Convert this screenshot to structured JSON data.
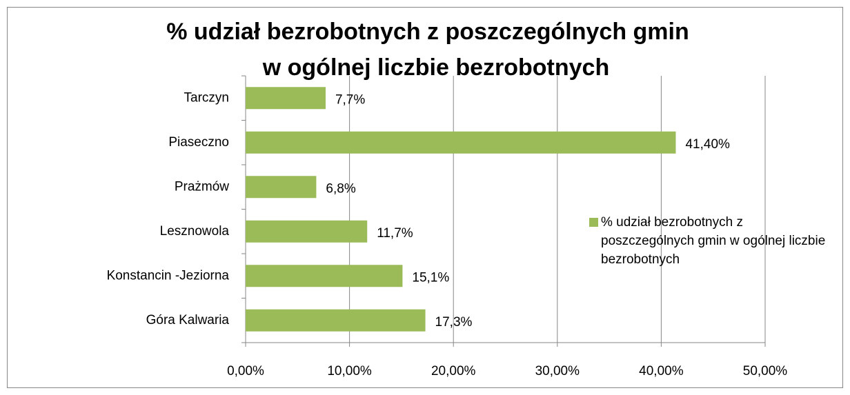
{
  "chart_data": {
    "type": "bar",
    "orientation": "horizontal",
    "title": [
      "% udział bezrobotnych z poszczególnych gmin",
      "w ogólnej liczbie bezrobotnych"
    ],
    "categories": [
      "Tarczyn",
      "Piaseczno",
      "Prażmów",
      "Lesznowola",
      "Konstancin -Jeziorna",
      "Góra Kalwaria"
    ],
    "series": [
      {
        "name": "% udział bezrobotnych z poszczególnych gmin w ogólnej liczbie bezrobotnych",
        "color": "#9bbb59",
        "values": [
          7.7,
          41.4,
          6.8,
          11.7,
          15.1,
          17.3
        ],
        "value_labels": [
          "7,7%",
          "41,40%",
          "6,8%",
          "11,7%",
          "15,1%",
          "17,3%"
        ]
      }
    ],
    "xlim": [
      0,
      50
    ],
    "xticks": [
      {
        "value": 0,
        "label": "0,00%"
      },
      {
        "value": 10,
        "label": "10,00%"
      },
      {
        "value": 20,
        "label": "20,00%"
      },
      {
        "value": 30,
        "label": "30,00%"
      },
      {
        "value": 40,
        "label": "40,00%"
      },
      {
        "value": 50,
        "label": "50,00%"
      }
    ],
    "grid": true,
    "legend": "right"
  }
}
